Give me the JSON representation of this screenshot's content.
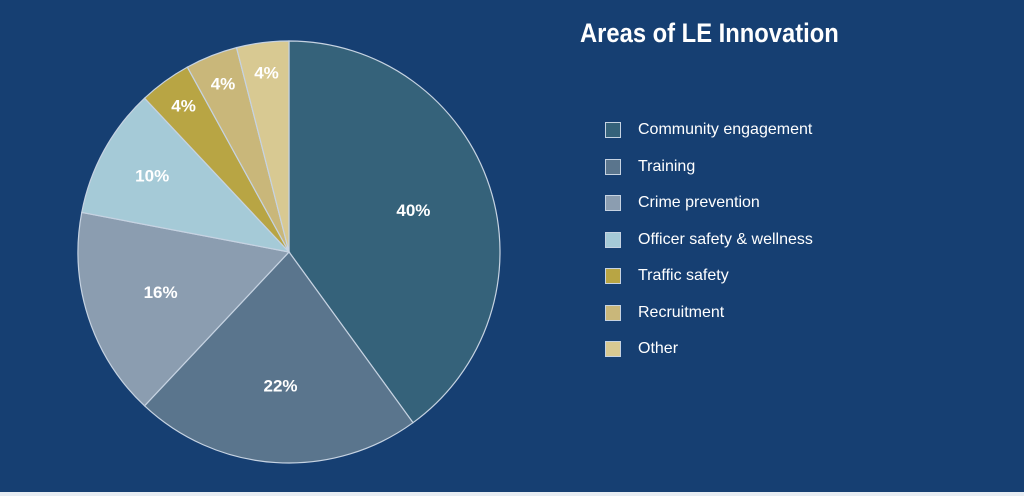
{
  "chart_data": {
    "type": "pie",
    "title": "Areas of LE Innovation",
    "slices": [
      {
        "label": "Community engagement",
        "value": 40,
        "display": "40%",
        "color": "#35627a"
      },
      {
        "label": "Training",
        "value": 22,
        "display": "22%",
        "color": "#5a758d"
      },
      {
        "label": "Crime prevention",
        "value": 16,
        "display": "16%",
        "color": "#8b9db0"
      },
      {
        "label": "Officer safety & wellness",
        "value": 10,
        "display": "10%",
        "color": "#a5cad7"
      },
      {
        "label": "Traffic safety",
        "value": 4,
        "display": "4%",
        "color": "#b8a544"
      },
      {
        "label": "Recruitment",
        "value": 4,
        "display": "4%",
        "color": "#c9b77a"
      },
      {
        "label": "Other",
        "value": 4,
        "display": "4%",
        "color": "#d8c992"
      }
    ],
    "legend_position": "right",
    "start": "top",
    "direction": "clockwise",
    "colors": {
      "background": "#163f72",
      "slice_border": "#c6d3e2"
    }
  }
}
